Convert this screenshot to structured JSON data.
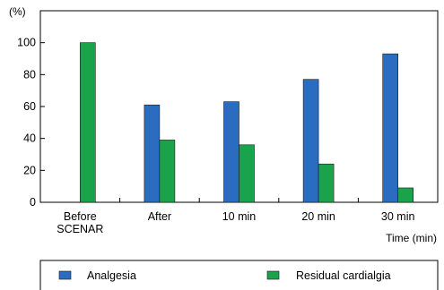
{
  "chart_data": {
    "type": "bar",
    "y_unit": "(%)",
    "x_unit": "Time (min)",
    "categories": [
      [
        "Before",
        "SCENAR"
      ],
      [
        "After"
      ],
      [
        "10 min"
      ],
      [
        "20 min"
      ],
      [
        "30 min"
      ]
    ],
    "series": [
      {
        "name": "Analgesia",
        "color": "#2a6cbf",
        "values": [
          null,
          61,
          63,
          77,
          93
        ]
      },
      {
        "name": "Residual cardialgia",
        "color": "#1aa34a",
        "values": [
          100,
          39,
          36,
          24,
          9
        ]
      }
    ],
    "ylim": [
      0,
      120
    ],
    "yticks": [
      0,
      20,
      40,
      60,
      80,
      100
    ],
    "grid": false,
    "legend_position": "bottom"
  }
}
